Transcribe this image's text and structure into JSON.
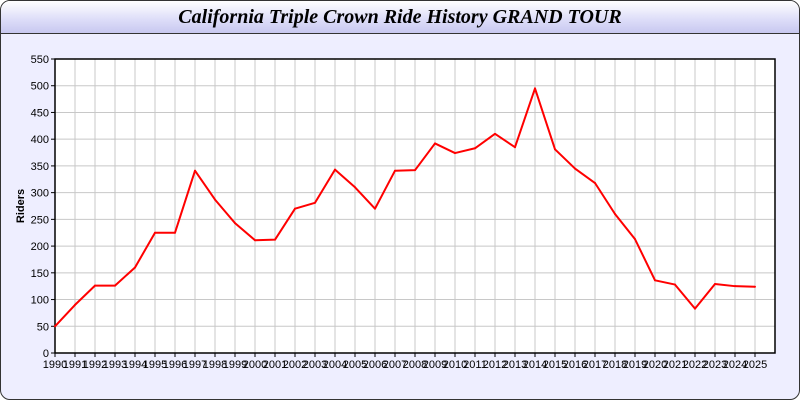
{
  "chart_data": {
    "type": "line",
    "title": "California Triple Crown Ride History GRAND TOUR",
    "xlabel": "",
    "ylabel": "Riders",
    "x": [
      1990,
      1991,
      1992,
      1993,
      1994,
      1995,
      1996,
      1997,
      1998,
      1999,
      2000,
      2001,
      2002,
      2003,
      2004,
      2005,
      2006,
      2007,
      2008,
      2009,
      2010,
      2011,
      2012,
      2013,
      2014,
      2015,
      2016,
      2017,
      2018,
      2019,
      2020,
      2021,
      2022,
      2023,
      2024,
      2025
    ],
    "series": [
      {
        "values": [
          50,
          90,
          126,
          126,
          160,
          225,
          225,
          341,
          287,
          243,
          211,
          212,
          270,
          281,
          343,
          310,
          270,
          341,
          342,
          392,
          374,
          383,
          410,
          385,
          495,
          381,
          345,
          318,
          260,
          213,
          136,
          128,
          83,
          129,
          125,
          124
        ],
        "color": "#ff0000"
      }
    ],
    "xlim": [
      1990,
      2026
    ],
    "ylim": [
      0,
      550
    ],
    "yticks": [
      0,
      50,
      100,
      150,
      200,
      250,
      300,
      350,
      400,
      450,
      500,
      550
    ],
    "grid": true,
    "colors": {
      "background": "#eeeeff",
      "plot": "#ffffff",
      "grid": "#c8c8c8",
      "line": "#ff0000"
    }
  }
}
